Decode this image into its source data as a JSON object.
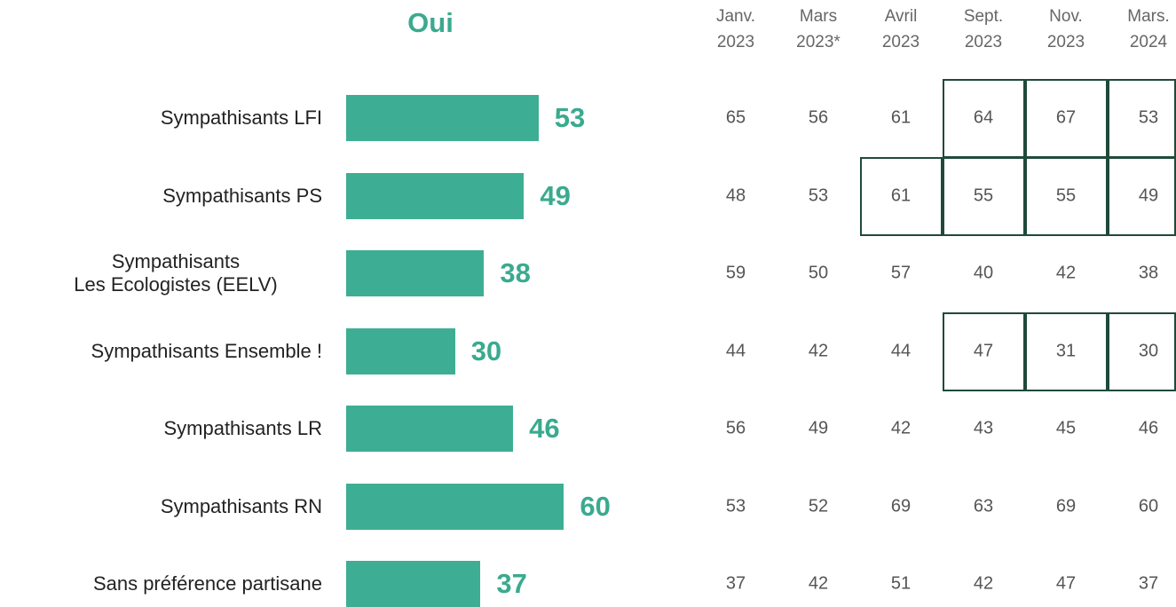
{
  "chart_data": {
    "type": "bar",
    "title": "Oui",
    "categories": [
      "Sympathisants LFI",
      "Sympathisants PS",
      "Sympathisants\nLes Ecologistes (EELV)",
      "Sympathisants Ensemble !",
      "Sympathisants LR",
      "Sympathisants RN",
      "Sans préférence partisane"
    ],
    "values": [
      53,
      49,
      38,
      30,
      46,
      60,
      37
    ],
    "color": "#3dae94",
    "label_color": "#3aaa8f",
    "table": {
      "columns": [
        "Janv.\n2023",
        "Mars\n2023*",
        "Avril\n2023",
        "Sept.\n2023",
        "Nov.\n2023",
        "Mars.\n2024"
      ],
      "rows": [
        [
          65,
          56,
          61,
          64,
          67,
          53
        ],
        [
          48,
          53,
          61,
          55,
          55,
          49
        ],
        [
          59,
          50,
          57,
          40,
          42,
          38
        ],
        [
          44,
          42,
          44,
          47,
          31,
          30
        ],
        [
          56,
          49,
          42,
          43,
          45,
          46
        ],
        [
          53,
          52,
          69,
          63,
          69,
          60
        ],
        [
          37,
          42,
          51,
          42,
          47,
          37
        ]
      ]
    }
  }
}
